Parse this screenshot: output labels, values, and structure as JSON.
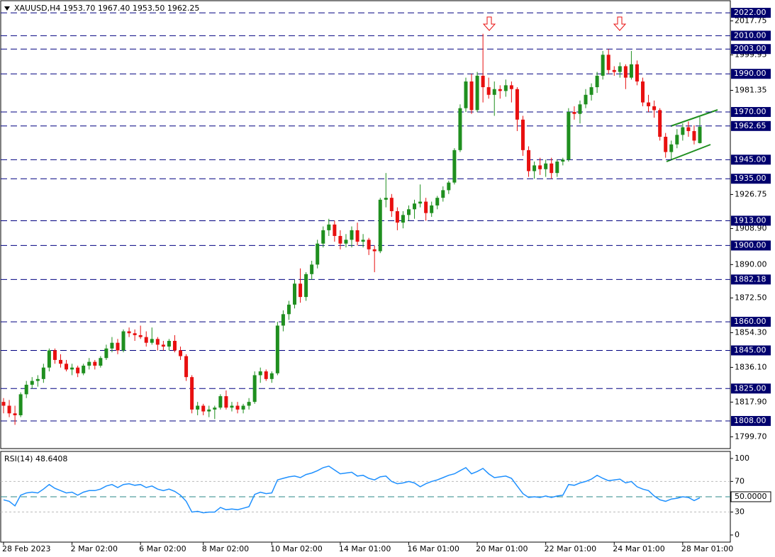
{
  "chart_data": [
    {
      "type": "candlestick",
      "title": "XAUUSD,H4  1953.70 1967.40 1953.50 1962.25",
      "up_color": "#1f8f1f",
      "down_color": "#e81010",
      "ylim": [
        1793.9,
        2027.6
      ],
      "yticks": [
        {
          "value": 2017.75,
          "label": "2017.75"
        },
        {
          "value": 1999.95,
          "label": "1999.95"
        },
        {
          "value": 1981.35,
          "label": "1981.35"
        },
        {
          "value": 1926.75,
          "label": "1926.75"
        },
        {
          "value": 1908.9,
          "label": "1908.90"
        },
        {
          "value": 1890,
          "label": "1890.00"
        },
        {
          "value": 1872.5,
          "label": "1872.50"
        },
        {
          "value": 1854.3,
          "label": "1854.30"
        },
        {
          "value": 1836.1,
          "label": "1836.10"
        },
        {
          "value": 1817.9,
          "label": "1817.90"
        },
        {
          "value": 1799.7,
          "label": "1799.70"
        }
      ],
      "levels": [
        {
          "value": 2022,
          "label": "2022.00"
        },
        {
          "value": 2010,
          "label": "2010.00"
        },
        {
          "value": 2003,
          "label": "2003.00"
        },
        {
          "value": 1990,
          "label": "1990.00"
        },
        {
          "value": 1970,
          "label": "1970.00"
        },
        {
          "value": 1962.65,
          "label": "1962.65"
        },
        {
          "value": 1945,
          "label": "1945.00"
        },
        {
          "value": 1935,
          "label": "1935.00"
        },
        {
          "value": 1913,
          "label": "1913.00"
        },
        {
          "value": 1900,
          "label": "1900.00"
        },
        {
          "value": 1882.18,
          "label": "1882.18"
        },
        {
          "value": 1860,
          "label": "1860.00"
        },
        {
          "value": 1845,
          "label": "1845.00"
        },
        {
          "value": 1825,
          "label": "1825.00"
        },
        {
          "value": 1808,
          "label": "1808.00"
        }
      ],
      "categories": [
        "28 Feb 2023",
        null,
        null,
        null,
        null,
        null,
        null,
        null,
        null,
        null,
        null,
        null,
        "2 Mar 02:00",
        null,
        null,
        null,
        null,
        null,
        null,
        null,
        null,
        null,
        null,
        null,
        "6 Mar 02:00",
        null,
        null,
        null,
        null,
        null,
        null,
        null,
        null,
        null,
        null,
        "8 Mar 02:00",
        null,
        null,
        null,
        null,
        null,
        null,
        null,
        null,
        null,
        null,
        null,
        "10 Mar 02:00",
        null,
        null,
        null,
        null,
        null,
        null,
        null,
        null,
        null,
        null,
        null,
        "14 Mar 01:00",
        null,
        null,
        null,
        null,
        null,
        null,
        null,
        null,
        null,
        null,
        null,
        "16 Mar 01:00",
        null,
        null,
        null,
        null,
        null,
        null,
        null,
        null,
        null,
        null,
        null,
        "20 Mar 01:00",
        null,
        null,
        null,
        null,
        null,
        null,
        null,
        null,
        null,
        null,
        null,
        "22 Mar 01:00",
        null,
        null,
        null,
        null,
        null,
        null,
        null,
        null,
        null,
        null,
        null,
        "24 Mar 01:00",
        null,
        null,
        null,
        null,
        null,
        null,
        null,
        null,
        null,
        null,
        null,
        "28 Mar 01:00",
        null,
        null,
        null
      ],
      "candles": [
        [
          1818,
          1820,
          1812,
          1816
        ],
        [
          1816,
          1819,
          1810,
          1812
        ],
        [
          1812,
          1816,
          1806,
          1811
        ],
        [
          1811,
          1823,
          1810,
          1822
        ],
        [
          1822,
          1829,
          1820,
          1827
        ],
        [
          1827,
          1831,
          1825,
          1829
        ],
        [
          1829,
          1832,
          1826,
          1830
        ],
        [
          1830,
          1838,
          1828,
          1836
        ],
        [
          1836,
          1846,
          1834,
          1845
        ],
        [
          1845,
          1846,
          1838,
          1840
        ],
        [
          1840,
          1843,
          1836,
          1838
        ],
        [
          1838,
          1840,
          1834,
          1835
        ],
        [
          1835,
          1838,
          1832,
          1836
        ],
        [
          1836,
          1837,
          1831,
          1833
        ],
        [
          1833,
          1838,
          1832,
          1837
        ],
        [
          1837,
          1841,
          1835,
          1839
        ],
        [
          1839,
          1840,
          1835,
          1837
        ],
        [
          1837,
          1842,
          1836,
          1841
        ],
        [
          1841,
          1848,
          1840,
          1846
        ],
        [
          1846,
          1852,
          1844,
          1849
        ],
        [
          1849,
          1851,
          1843,
          1845
        ],
        [
          1845,
          1856,
          1844,
          1855
        ],
        [
          1855,
          1857,
          1852,
          1854
        ],
        [
          1854,
          1856,
          1850,
          1853
        ],
        [
          1853,
          1858,
          1851,
          1852
        ],
        [
          1852,
          1855,
          1847,
          1849
        ],
        [
          1849,
          1857,
          1848,
          1851
        ],
        [
          1851,
          1852,
          1845,
          1848
        ],
        [
          1848,
          1850,
          1845,
          1847
        ],
        [
          1847,
          1851,
          1845,
          1850
        ],
        [
          1850,
          1853,
          1844,
          1845
        ],
        [
          1845,
          1847,
          1840,
          1842
        ],
        [
          1842,
          1843,
          1829,
          1831
        ],
        [
          1831,
          1832,
          1812,
          1814
        ],
        [
          1814,
          1818,
          1811,
          1816
        ],
        [
          1816,
          1817,
          1811,
          1813
        ],
        [
          1813,
          1816,
          1810,
          1814
        ],
        [
          1814,
          1816,
          1809,
          1815
        ],
        [
          1815,
          1822,
          1814,
          1821
        ],
        [
          1821,
          1824,
          1814,
          1815
        ],
        [
          1815,
          1818,
          1813,
          1816
        ],
        [
          1816,
          1818,
          1812,
          1814
        ],
        [
          1814,
          1817,
          1812,
          1816
        ],
        [
          1816,
          1820,
          1814,
          1818
        ],
        [
          1818,
          1834,
          1817,
          1832
        ],
        [
          1832,
          1836,
          1828,
          1834
        ],
        [
          1834,
          1835,
          1829,
          1830
        ],
        [
          1830,
          1834,
          1828,
          1833
        ],
        [
          1833,
          1860,
          1832,
          1858
        ],
        [
          1858,
          1866,
          1855,
          1864
        ],
        [
          1864,
          1871,
          1861,
          1869
        ],
        [
          1869,
          1882,
          1867,
          1880
        ],
        [
          1880,
          1888,
          1870,
          1873
        ],
        [
          1873,
          1886,
          1871,
          1885
        ],
        [
          1885,
          1892,
          1882,
          1890
        ],
        [
          1890,
          1903,
          1888,
          1901
        ],
        [
          1901,
          1910,
          1899,
          1908
        ],
        [
          1908,
          1914,
          1905,
          1911
        ],
        [
          1911,
          1913,
          1902,
          1905
        ],
        [
          1905,
          1908,
          1898,
          1901
        ],
        [
          1901,
          1906,
          1899,
          1903
        ],
        [
          1903,
          1910,
          1899,
          1908
        ],
        [
          1908,
          1912,
          1900,
          1902
        ],
        [
          1902,
          1906,
          1899,
          1903
        ],
        [
          1903,
          1904,
          1895,
          1898
        ],
        [
          1898,
          1900,
          1886,
          1897
        ],
        [
          1897,
          1925,
          1896,
          1924
        ],
        [
          1924,
          1938,
          1920,
          1925
        ],
        [
          1925,
          1927,
          1915,
          1918
        ],
        [
          1918,
          1920,
          1908,
          1912
        ],
        [
          1912,
          1918,
          1909,
          1916
        ],
        [
          1916,
          1921,
          1913,
          1919
        ],
        [
          1919,
          1924,
          1914,
          1922
        ],
        [
          1922,
          1932,
          1920,
          1923
        ],
        [
          1923,
          1925,
          1913,
          1917
        ],
        [
          1917,
          1923,
          1915,
          1921
        ],
        [
          1921,
          1926,
          1919,
          1925
        ],
        [
          1925,
          1931,
          1923,
          1929
        ],
        [
          1929,
          1934,
          1927,
          1933
        ],
        [
          1933,
          1951,
          1932,
          1950
        ],
        [
          1950,
          1974,
          1949,
          1972
        ],
        [
          1972,
          1988,
          1970,
          1986
        ],
        [
          1986,
          1990,
          1969,
          1971
        ],
        [
          1971,
          1991,
          1970,
          1989
        ],
        [
          1989,
          2011,
          1975,
          1983
        ],
        [
          1983,
          1988,
          1977,
          1979
        ],
        [
          1979,
          1986,
          1968,
          1982
        ],
        [
          1982,
          1984,
          1977,
          1981
        ],
        [
          1981,
          1987,
          1978,
          1984
        ],
        [
          1984,
          1986,
          1975,
          1982
        ],
        [
          1982,
          1983,
          1960,
          1966
        ],
        [
          1966,
          1968,
          1947,
          1950
        ],
        [
          1950,
          1952,
          1936,
          1939
        ],
        [
          1939,
          1944,
          1935,
          1942
        ],
        [
          1942,
          1946,
          1937,
          1940
        ],
        [
          1940,
          1945,
          1936,
          1943
        ],
        [
          1943,
          1946,
          1935,
          1938
        ],
        [
          1938,
          1945,
          1936,
          1944
        ],
        [
          1944,
          1946,
          1942,
          1945
        ],
        [
          1945,
          1972,
          1944,
          1970
        ],
        [
          1970,
          1973,
          1966,
          1969
        ],
        [
          1969,
          1976,
          1964,
          1974
        ],
        [
          1974,
          1982,
          1972,
          1979
        ],
        [
          1979,
          1985,
          1976,
          1983
        ],
        [
          1983,
          1991,
          1980,
          1989
        ],
        [
          1989,
          2002,
          1987,
          2000
        ],
        [
          2000,
          2003,
          1990,
          1992
        ],
        [
          1992,
          1994,
          1989,
          1991
        ],
        [
          1991,
          1996,
          1988,
          1994
        ],
        [
          1994,
          1995,
          1982,
          1988
        ],
        [
          1988,
          2002,
          1987,
          1995
        ],
        [
          1995,
          1997,
          1984,
          1986
        ],
        [
          1986,
          1988,
          1973,
          1975
        ],
        [
          1975,
          1979,
          1970,
          1973
        ],
        [
          1973,
          1976,
          1967,
          1971
        ],
        [
          1971,
          1972,
          1955,
          1957
        ],
        [
          1957,
          1959,
          1946,
          1949
        ],
        [
          1949,
          1955,
          1945,
          1953
        ],
        [
          1953,
          1961,
          1951,
          1958
        ],
        [
          1958,
          1964,
          1955,
          1962
        ],
        [
          1962,
          1965,
          1957,
          1960
        ],
        [
          1960,
          1963,
          1953,
          1955
        ],
        [
          1953.7,
          1967.4,
          1953.5,
          1962.25
        ]
      ]
    },
    {
      "type": "line",
      "title": "RSI(14) 48.6408",
      "color": "#1e90ff",
      "ylim": [
        -9.3,
        108.3
      ],
      "yticks": [
        0,
        30,
        {
          "value": 50,
          "label": "50.0000"
        },
        70,
        100
      ],
      "values": [
        46,
        44,
        38,
        52,
        55,
        56,
        55,
        60,
        66,
        61,
        58,
        55,
        56,
        52,
        56,
        58,
        58,
        60,
        64,
        66,
        62,
        66,
        67,
        65,
        66,
        62,
        64,
        60,
        58,
        60,
        57,
        52,
        44,
        30,
        31,
        29,
        30,
        30,
        36,
        33,
        34,
        33,
        35,
        37,
        53,
        56,
        54,
        55,
        72,
        74,
        76,
        77,
        75,
        79,
        81,
        84,
        88,
        90,
        85,
        80,
        81,
        82,
        77,
        78,
        74,
        72,
        76,
        77,
        70,
        67,
        68,
        70,
        68,
        63,
        67,
        70,
        72,
        75,
        78,
        80,
        84,
        88,
        80,
        83,
        87,
        80,
        75,
        76,
        77,
        74,
        64,
        54,
        49,
        50,
        49,
        51,
        49,
        51,
        52,
        66,
        65,
        68,
        70,
        73,
        78,
        74,
        71,
        72,
        73,
        68,
        70,
        63,
        60,
        58,
        51,
        46,
        44,
        47,
        48,
        50,
        49,
        45,
        48.6408
      ]
    }
  ]
}
